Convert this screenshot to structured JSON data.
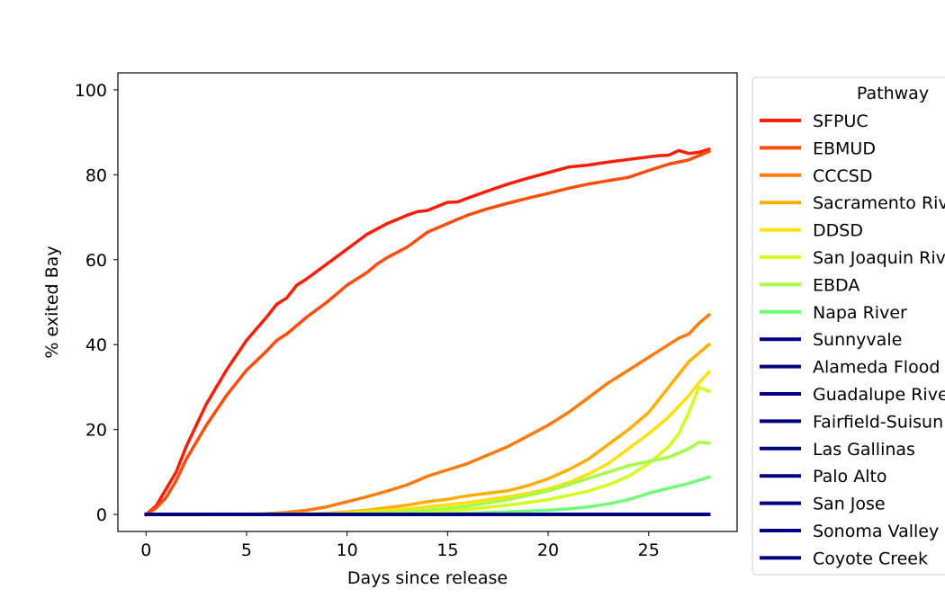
{
  "chart_data": {
    "type": "line",
    "xlabel": "Days since release",
    "ylabel": "% exited Bay",
    "xlim": [
      -1.4,
      29.4
    ],
    "ylim": [
      -4,
      104
    ],
    "xticks": [
      0,
      5,
      10,
      15,
      20,
      25
    ],
    "yticks": [
      0,
      20,
      40,
      60,
      80,
      100
    ],
    "grid": false,
    "legend": {
      "title": "Pathway",
      "placement": "outside-right"
    },
    "series": [
      {
        "name": "SFPUC",
        "color": "#f91e07",
        "x": [
          0,
          0.5,
          1,
          1.5,
          2,
          3,
          4,
          5,
          6,
          6.5,
          7,
          7.5,
          8,
          9,
          10,
          11,
          12,
          13,
          13.5,
          14,
          15,
          15.5,
          16,
          17,
          18,
          19,
          20,
          21,
          22,
          23,
          24,
          25,
          25.5,
          26,
          26.5,
          27,
          27.5,
          28
        ],
        "y": [
          0,
          2,
          6,
          10,
          16,
          26,
          34,
          41,
          46.5,
          49.5,
          51,
          54,
          55.5,
          59,
          62.5,
          66,
          68.5,
          70.5,
          71.3,
          71.6,
          73.5,
          73.6,
          74.5,
          76.2,
          77.8,
          79.2,
          80.5,
          81.8,
          82.3,
          83,
          83.6,
          84.2,
          84.5,
          84.6,
          85.7,
          85,
          85.3,
          86
        ]
      },
      {
        "name": "EBMUD",
        "color": "#fd4d0c",
        "x": [
          0,
          0.5,
          1,
          1.5,
          2,
          3,
          4,
          5,
          6,
          6.5,
          7,
          7.5,
          8,
          9,
          10,
          11,
          11.5,
          12,
          13,
          14,
          15,
          16,
          17,
          18,
          19,
          20,
          21,
          22,
          23,
          24,
          25,
          26,
          27,
          28
        ],
        "y": [
          0,
          1.5,
          4,
          8,
          13,
          21,
          28,
          34,
          38.5,
          41,
          42.5,
          44.5,
          46.5,
          50,
          54,
          57,
          59,
          60.5,
          63,
          66.5,
          68.5,
          70.5,
          72,
          73.3,
          74.5,
          75.6,
          76.8,
          77.8,
          78.6,
          79.4,
          81,
          82.5,
          83.5,
          85.5
        ]
      },
      {
        "name": "CCCSD",
        "color": "#fe7b0f",
        "x": [
          0,
          5,
          6,
          7,
          8,
          9,
          10,
          11,
          12,
          13,
          14,
          15,
          16,
          17,
          18,
          19,
          20,
          21,
          22,
          23,
          24,
          25,
          26,
          26.5,
          27,
          27.5,
          28
        ],
        "y": [
          0,
          0,
          0.2,
          0.5,
          1,
          1.8,
          3,
          4.2,
          5.5,
          7,
          9,
          10.5,
          12,
          14,
          16,
          18.5,
          21,
          24,
          27.5,
          31,
          34,
          37,
          40,
          41.5,
          42.5,
          45,
          47
        ]
      },
      {
        "name": "Sacramento River",
        "color": "#fdae00",
        "x": [
          0,
          8,
          9,
          10,
          11,
          12,
          13,
          14,
          15,
          16,
          17,
          18,
          19,
          20,
          21,
          22,
          23,
          24,
          25,
          26,
          27,
          28
        ],
        "y": [
          0,
          0.1,
          0.3,
          0.6,
          1,
          1.6,
          2.2,
          3,
          3.6,
          4.4,
          5,
          5.6,
          6.8,
          8.4,
          10.5,
          13,
          16.5,
          20,
          24,
          30,
          36,
          40
        ]
      },
      {
        "name": "DDSD",
        "color": "#fee010",
        "x": [
          0,
          9,
          10,
          11,
          12,
          13,
          14,
          15,
          16,
          17,
          18,
          19,
          20,
          21,
          22,
          23,
          24,
          25,
          26,
          27,
          27.5,
          28
        ],
        "y": [
          0,
          0.2,
          0.4,
          0.7,
          1,
          1.3,
          1.8,
          2.3,
          2.8,
          3.5,
          4.2,
          5,
          6,
          7.5,
          9.5,
          12,
          15.5,
          19,
          23,
          28,
          31,
          33.5
        ]
      },
      {
        "name": "San Joaquin River",
        "color": "#d1fd1f",
        "x": [
          0,
          10,
          12,
          14,
          16,
          18,
          19,
          20,
          21,
          22,
          23,
          24,
          25,
          25.5,
          26,
          26.5,
          27,
          27.5,
          28
        ],
        "y": [
          0,
          0.1,
          0.3,
          0.7,
          1.2,
          2.2,
          2.8,
          3.5,
          4.5,
          5.5,
          7,
          9,
          12,
          14,
          16,
          19,
          24,
          30,
          29
        ]
      },
      {
        "name": "EBDA",
        "color": "#a5fd48",
        "x": [
          0,
          10,
          12,
          14,
          16,
          18,
          19,
          20,
          21,
          22,
          23,
          24,
          25,
          26,
          27,
          27.5,
          28
        ],
        "y": [
          0,
          0.2,
          0.5,
          1,
          2,
          3.5,
          4.5,
          5.5,
          7,
          8.5,
          10,
          11.5,
          12.5,
          13.5,
          15.5,
          17,
          16.8
        ]
      },
      {
        "name": "Napa River",
        "color": "#72fd78",
        "x": [
          0,
          14,
          16,
          18,
          19,
          20,
          21,
          22,
          23,
          24,
          25,
          26,
          27,
          28
        ],
        "y": [
          0,
          0.1,
          0.3,
          0.6,
          0.8,
          1,
          1.3,
          1.8,
          2.5,
          3.5,
          5,
          6.2,
          7.3,
          8.8
        ]
      },
      {
        "name": "Sunnyvale",
        "color": "#000080",
        "x": [
          0,
          28
        ],
        "y": [
          0,
          0
        ]
      },
      {
        "name": "Alameda Flood Control",
        "color": "#000080",
        "x": [
          0,
          28
        ],
        "y": [
          0,
          0
        ]
      },
      {
        "name": "Guadalupe River",
        "color": "#000080",
        "x": [
          0,
          28
        ],
        "y": [
          0,
          0
        ]
      },
      {
        "name": "Fairfield-Suisun",
        "color": "#000080",
        "x": [
          0,
          28
        ],
        "y": [
          0,
          0
        ]
      },
      {
        "name": "Las Gallinas",
        "color": "#000080",
        "x": [
          0,
          28
        ],
        "y": [
          0,
          0
        ]
      },
      {
        "name": "Palo Alto",
        "color": "#000080",
        "x": [
          0,
          28
        ],
        "y": [
          0,
          0
        ]
      },
      {
        "name": "San Jose",
        "color": "#000080",
        "x": [
          0,
          28
        ],
        "y": [
          0,
          0
        ]
      },
      {
        "name": "Sonoma Valley",
        "color": "#000080",
        "x": [
          0,
          28
        ],
        "y": [
          0,
          0
        ]
      },
      {
        "name": "Coyote Creek",
        "color": "#000080",
        "x": [
          0,
          28
        ],
        "y": [
          0,
          0
        ]
      }
    ]
  }
}
